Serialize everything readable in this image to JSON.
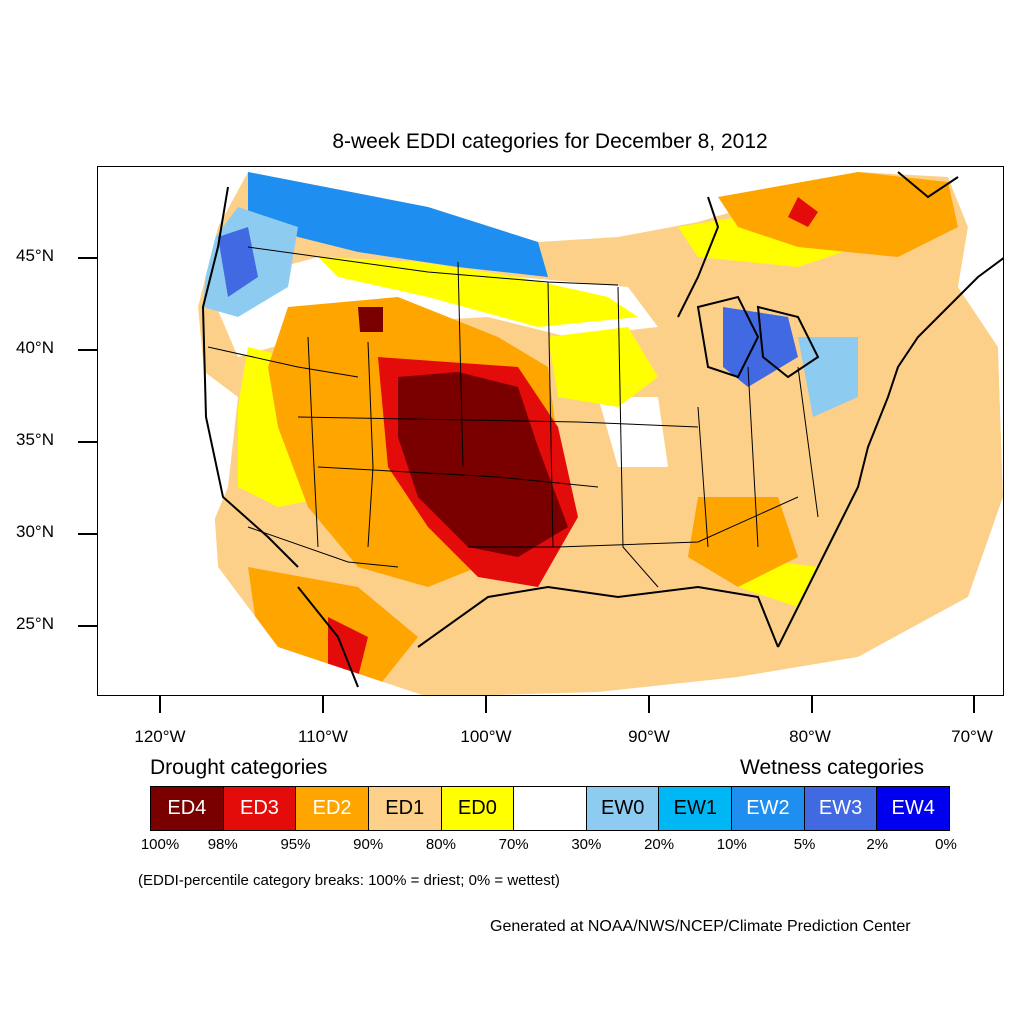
{
  "title": "8-week EDDI categories for December 8, 2012",
  "latitude_labels": [
    "45°N",
    "40°N",
    "35°N",
    "30°N",
    "25°N"
  ],
  "longitude_labels": [
    "120°W",
    "110°W",
    "100°W",
    "90°W",
    "80°W",
    "70°W"
  ],
  "legend": {
    "drought_heading": "Drought categories",
    "wetness_heading": "Wetness categories",
    "categories": [
      {
        "label": "ED4",
        "color": "#7a0000",
        "text_color": "#ffffff"
      },
      {
        "label": "ED3",
        "color": "#e40b0b",
        "text_color": "#ffffff"
      },
      {
        "label": "ED2",
        "color": "#ffa500",
        "text_color": "#ffffff"
      },
      {
        "label": "ED1",
        "color": "#fdd08a",
        "text_color": "#000000"
      },
      {
        "label": "ED0",
        "color": "#ffff00",
        "text_color": "#000000"
      },
      {
        "label": "",
        "color": "#ffffff",
        "text_color": "#000000"
      },
      {
        "label": "EW0",
        "color": "#8ecbf0",
        "text_color": "#000000"
      },
      {
        "label": "EW1",
        "color": "#00b7f5",
        "text_color": "#000000"
      },
      {
        "label": "EW2",
        "color": "#1e8ff0",
        "text_color": "#ffffff"
      },
      {
        "label": "EW3",
        "color": "#4169e1",
        "text_color": "#ffffff"
      },
      {
        "label": "EW4",
        "color": "#0000ee",
        "text_color": "#ffffff"
      }
    ],
    "percentile_breaks": [
      "100%",
      "98%",
      "95%",
      "90%",
      "80%",
      "70%",
      "30%",
      "20%",
      "10%",
      "5%",
      "2%",
      "0%"
    ]
  },
  "note": "(EDDI-percentile category breaks: 100% = driest; 0% = wettest)",
  "credit": "Generated at NOAA/NWS/NCEP/Climate Prediction Center"
}
